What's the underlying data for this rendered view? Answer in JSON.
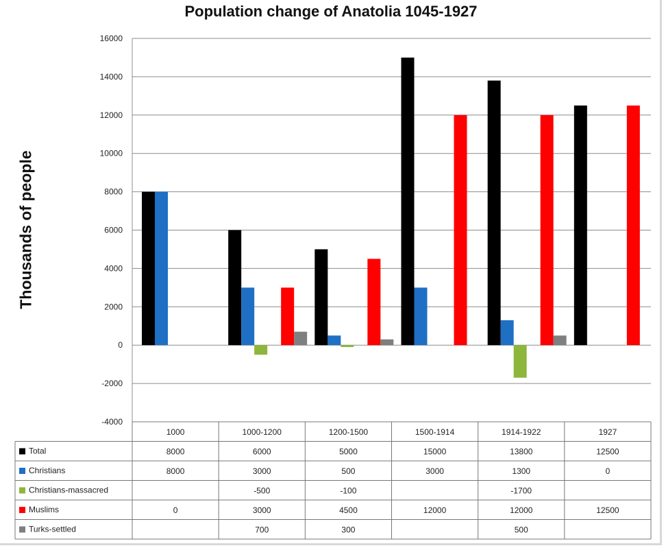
{
  "title": "Population change of Anatolia 1045-1927",
  "chart_data": {
    "type": "bar",
    "title": "Population change of Anatolia 1045-1927",
    "xlabel": "",
    "ylabel": "Thousands of people",
    "ylim": [
      -4000,
      16000
    ],
    "yticks": [
      "16000",
      "14000",
      "12000",
      "10000",
      "8000",
      "6000",
      "4000",
      "2000",
      "0",
      "-2000",
      "-4000"
    ],
    "ytick_values": [
      16000,
      14000,
      12000,
      10000,
      8000,
      6000,
      4000,
      2000,
      0,
      -2000,
      -4000
    ],
    "grid": true,
    "categories": [
      "1000",
      "1000-1200",
      "1200-1500",
      "1500-1914",
      "1914-1922",
      "1927"
    ],
    "series": [
      {
        "name": "Total",
        "color": "#000000",
        "values": [
          8000,
          6000,
          5000,
          15000,
          13800,
          12500
        ],
        "labels": [
          "8000",
          "6000",
          "5000",
          "15000",
          "13800",
          "12500"
        ]
      },
      {
        "name": "Christians",
        "color": "#1f6fc4",
        "values": [
          8000,
          3000,
          500,
          3000,
          1300,
          0
        ],
        "labels": [
          "8000",
          "3000",
          "500",
          "3000",
          "1300",
          "0"
        ]
      },
      {
        "name": "Christians-massacred",
        "color": "#8db63c",
        "values": [
          null,
          -500,
          -100,
          null,
          -1700,
          null
        ],
        "labels": [
          "",
          "-500",
          "-100",
          "",
          "-1700",
          ""
        ]
      },
      {
        "name": "Muslims",
        "color": "#ff0000",
        "values": [
          0,
          3000,
          4500,
          12000,
          12000,
          12500
        ],
        "labels": [
          "0",
          "3000",
          "4500",
          "12000",
          "12000",
          "12500"
        ]
      },
      {
        "name": "Turks-settled",
        "color": "#7f7f7f",
        "values": [
          null,
          700,
          300,
          null,
          500,
          null
        ],
        "labels": [
          "",
          "700",
          "300",
          "",
          "500",
          ""
        ]
      }
    ]
  }
}
